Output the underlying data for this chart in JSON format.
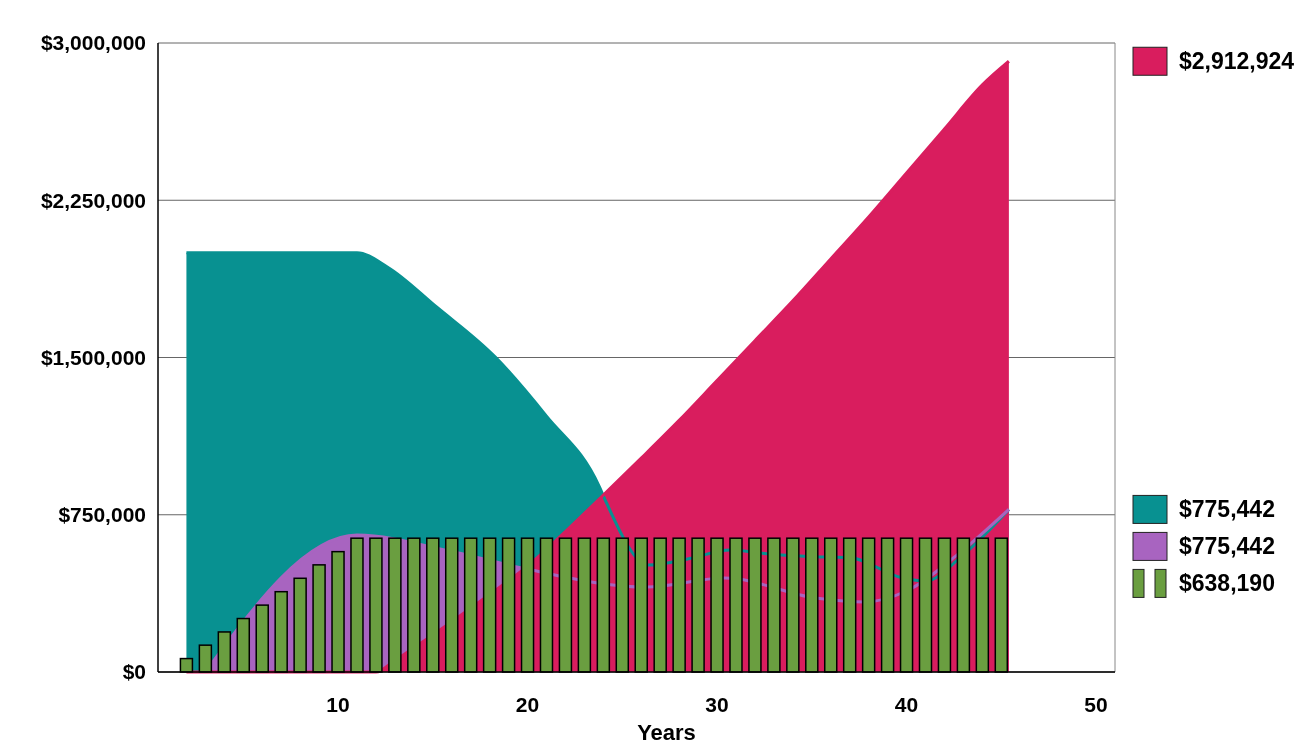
{
  "chart_data": {
    "type": "area",
    "xlabel": "Years",
    "xlim": [
      0.5,
      51
    ],
    "xticks": [
      10,
      20,
      30,
      40,
      50
    ],
    "ylim": [
      0,
      3000000
    ],
    "yticks": [
      {
        "value": 0,
        "label": "$0"
      },
      {
        "value": 750000,
        "label": "$750,000"
      },
      {
        "value": 1500000,
        "label": "$1,500,000"
      },
      {
        "value": 2250000,
        "label": "$2,250,000"
      },
      {
        "value": 3000000,
        "label": "$3,000,000"
      }
    ],
    "grid": "y",
    "legend": "right",
    "tick_labels": "xy",
    "series": [
      {
        "name": "$775,442",
        "color": "#089191",
        "x": [
          2,
          11,
          12.6,
          15.2,
          18.3,
          21,
          23.8,
          24.1,
          26.4,
          28.5,
          30.7,
          33,
          35,
          37,
          39.8,
          41,
          43,
          45.4
        ],
        "values": [
          2000000,
          2000000,
          1932000,
          1741000,
          1502000,
          1220000,
          882000,
          820000,
          510000,
          540000,
          582000,
          560000,
          550000,
          545000,
          448000,
          434000,
          560000,
          775442
        ]
      },
      {
        "name": "$775,442",
        "color": "#a864c0",
        "x": [
          3,
          11,
          16.1,
          19.7,
          26.3,
          30.4,
          35.2,
          37.8,
          40.1,
          42.8,
          45.4
        ],
        "values": [
          0,
          653000,
          572000,
          496000,
          405000,
          448000,
          353000,
          334000,
          391000,
          568000,
          775442
        ]
      },
      {
        "name": "$2,912,924",
        "color": "#d91d5e",
        "x": [
          2,
          12,
          13,
          14,
          16,
          18,
          20,
          22,
          24,
          26,
          28,
          30,
          32,
          34,
          36,
          38,
          40,
          42,
          44,
          45.4
        ],
        "values": [
          0,
          0,
          55000,
          115000,
          240000,
          370000,
          505000,
          670000,
          844000,
          1020000,
          1200000,
          1390000,
          1580000,
          1770000,
          1970000,
          2170000,
          2380000,
          2590000,
          2800000,
          2912924
        ]
      },
      {
        "name": "$638,190",
        "type": "bar",
        "color": "#6a9e40",
        "x": [
          2,
          3,
          4,
          5,
          6,
          7,
          8,
          9,
          10,
          11,
          12,
          13,
          14,
          15,
          16,
          17,
          18,
          19,
          20,
          21,
          22,
          23,
          24,
          25,
          26,
          27,
          28,
          29,
          30,
          31,
          32,
          33,
          34,
          35,
          36,
          37,
          38,
          39,
          40,
          41,
          42,
          43,
          44,
          45
        ],
        "values": [
          64000,
          128000,
          191000,
          255000,
          319000,
          383000,
          447000,
          511000,
          574000,
          638190,
          638190,
          638190,
          638190,
          638190,
          638190,
          638190,
          638190,
          638190,
          638190,
          638190,
          638190,
          638190,
          638190,
          638190,
          638190,
          638190,
          638190,
          638190,
          638190,
          638190,
          638190,
          638190,
          638190,
          638190,
          638190,
          638190,
          638190,
          638190,
          638190,
          638190,
          638190,
          638190,
          638190,
          638190
        ]
      }
    ]
  }
}
